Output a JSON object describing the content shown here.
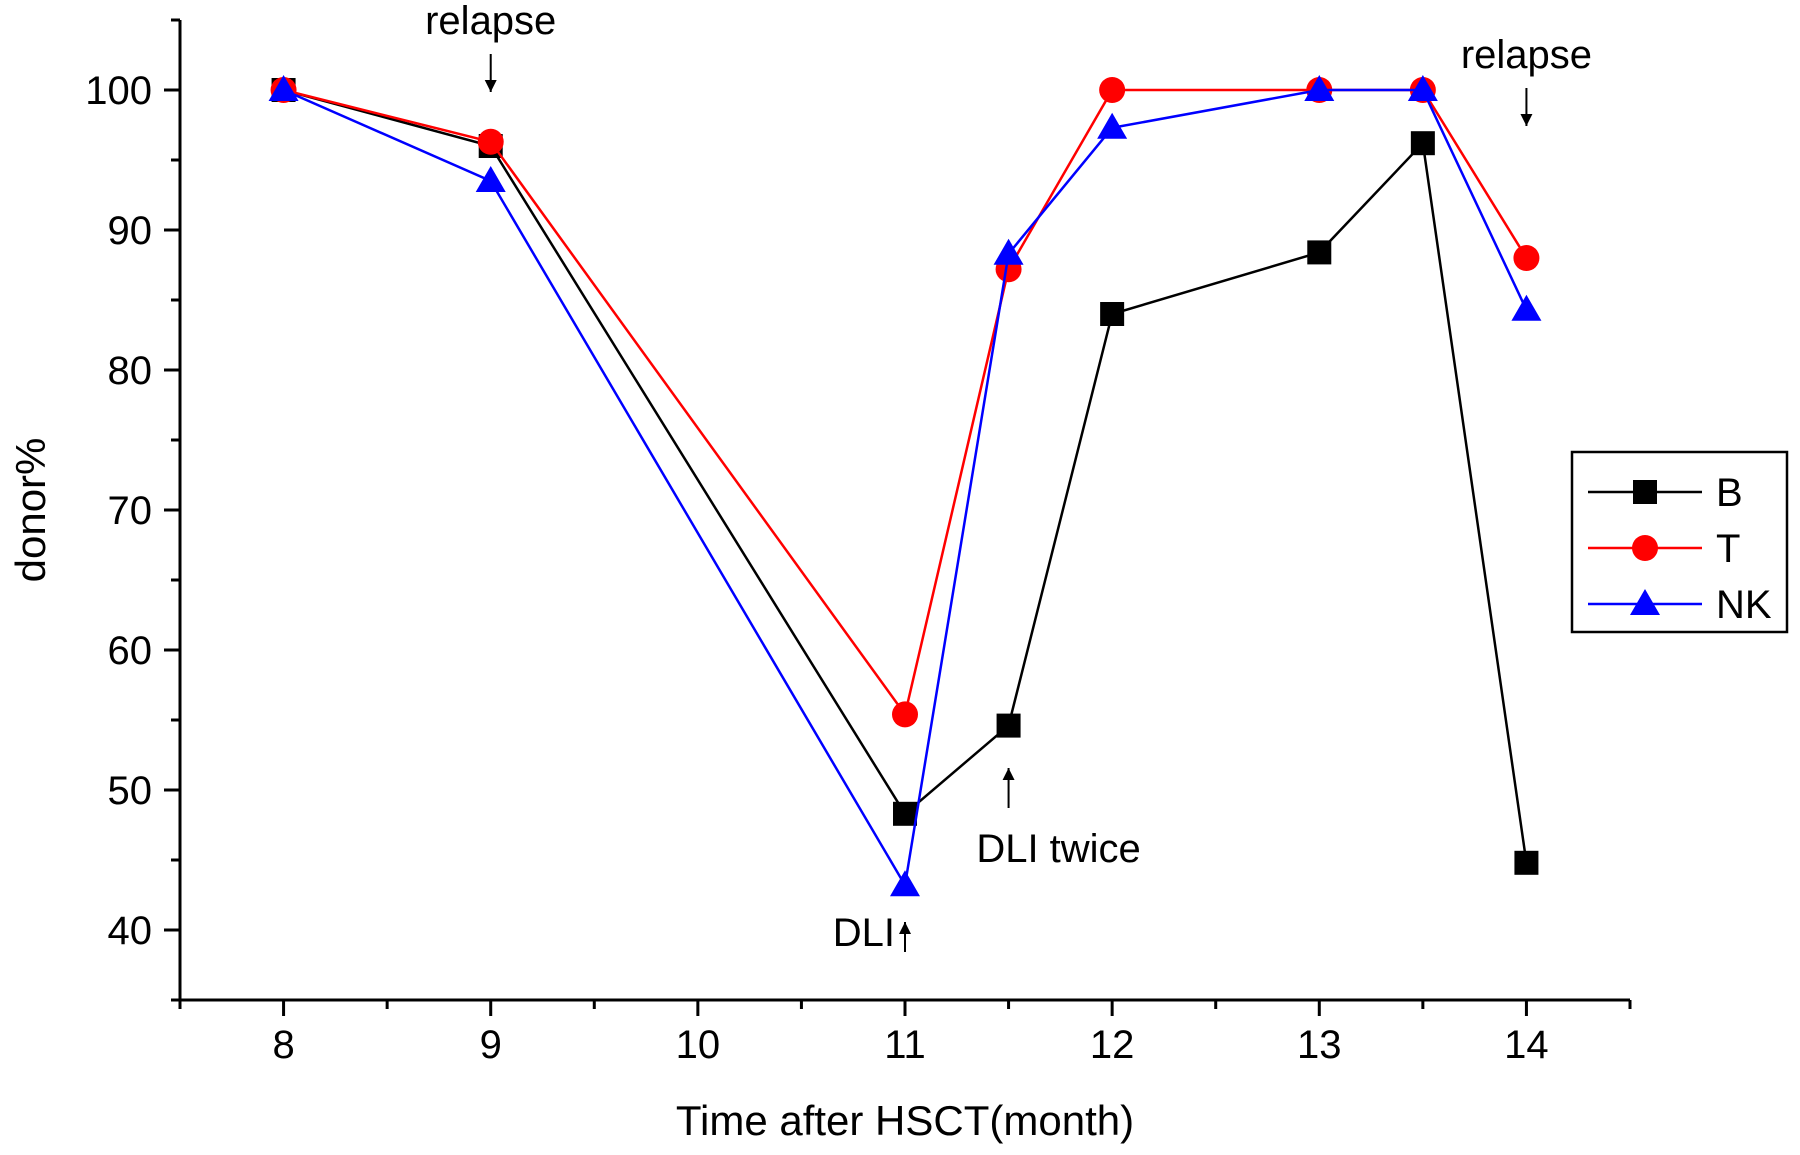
{
  "chart_data": {
    "type": "line",
    "title": "",
    "xlabel": "Time after HSCT(month)",
    "ylabel": "donor%",
    "xlim": [
      7.5,
      14.5
    ],
    "ylim": [
      35,
      105
    ],
    "x_ticks": [
      8,
      9,
      10,
      11,
      12,
      13,
      14
    ],
    "y_ticks": [
      40,
      50,
      60,
      70,
      80,
      90,
      100
    ],
    "grid": false,
    "legend_position": "right",
    "series": [
      {
        "name": "B",
        "color": "#000000",
        "marker": "square",
        "x": [
          8,
          9,
          11,
          11.5,
          12,
          13,
          13.5,
          14
        ],
        "y": [
          100,
          96,
          48.3,
          54.6,
          84,
          88.4,
          96.2,
          44.8
        ]
      },
      {
        "name": "T",
        "color": "#ff0000",
        "marker": "circle",
        "x": [
          8,
          9,
          11,
          11.5,
          12,
          13,
          13.5,
          14
        ],
        "y": [
          100,
          96.3,
          55.4,
          87.2,
          100,
          100,
          100,
          88
        ]
      },
      {
        "name": "NK",
        "color": "#0000ff",
        "marker": "triangle",
        "x": [
          8,
          9,
          11,
          11.5,
          12,
          13,
          13.5,
          14
        ],
        "y": [
          100,
          93.5,
          43.2,
          88.3,
          97.3,
          100,
          100,
          84.3
        ]
      }
    ],
    "annotations": [
      {
        "text": "relapse",
        "x": 9,
        "arrow": "down"
      },
      {
        "text": "relapse",
        "x": 14,
        "arrow": "down"
      },
      {
        "text": "DLI",
        "x": 11,
        "arrow": "up"
      },
      {
        "text": "DLI twice",
        "x": 11.5,
        "arrow": "up"
      }
    ]
  }
}
